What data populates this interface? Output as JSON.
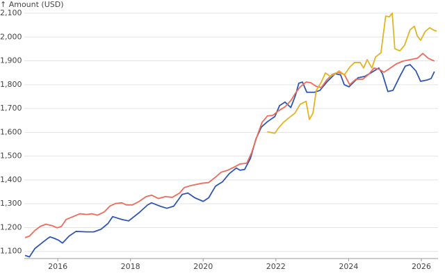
{
  "chart_data": {
    "type": "line",
    "y_label": "↑ Amount (USD)",
    "xlim": [
      2015.08,
      2026.46
    ],
    "xticks": [
      2016,
      2018,
      2020,
      2022,
      2024,
      2026
    ],
    "ylim": [
      1070,
      2100
    ],
    "yticks": [
      {
        "value": 1100,
        "label": "1,100"
      },
      {
        "value": 1200,
        "label": "1,200"
      },
      {
        "value": 1300,
        "label": "1,300"
      },
      {
        "value": 1400,
        "label": "1,400"
      },
      {
        "value": 1500,
        "label": "1,500"
      },
      {
        "value": 1600,
        "label": "1,600"
      },
      {
        "value": 1700,
        "label": "1,700"
      },
      {
        "value": 1800,
        "label": "1,800"
      },
      {
        "value": 1900,
        "label": "1,900"
      },
      {
        "value": 2000,
        "label": "2,000"
      },
      {
        "value": 2100,
        "label": "2,100"
      }
    ],
    "grid": true,
    "series": [
      {
        "color": "#2f55b4",
        "x": [
          2015.1,
          2015.22,
          2015.37,
          2015.56,
          2015.71,
          2015.79,
          2015.9,
          2016.02,
          2016.13,
          2016.31,
          2016.5,
          2016.8,
          2016.99,
          2017.19,
          2017.38,
          2017.51,
          2017.76,
          2017.95,
          2018.24,
          2018.47,
          2018.58,
          2018.81,
          2019.0,
          2019.19,
          2019.42,
          2019.58,
          2019.77,
          2020.0,
          2020.15,
          2020.34,
          2020.53,
          2020.72,
          2020.91,
          2021.01,
          2021.14,
          2021.3,
          2021.45,
          2021.6,
          2021.77,
          2021.97,
          2022.1,
          2022.25,
          2022.41,
          2022.54,
          2022.63,
          2022.73,
          2022.85,
          2023.06,
          2023.21,
          2023.4,
          2023.63,
          2023.78,
          2023.88,
          2024.01,
          2024.26,
          2024.45,
          2024.64,
          2024.83,
          2024.93,
          2025.08,
          2025.22,
          2025.41,
          2025.56,
          2025.69,
          2025.85,
          2025.98,
          2026.17,
          2026.27,
          2026.36
        ],
        "values": [
          1083,
          1077,
          1112,
          1135,
          1153,
          1161,
          1155,
          1147,
          1135,
          1164,
          1184,
          1182,
          1182,
          1193,
          1217,
          1246,
          1234,
          1228,
          1263,
          1295,
          1304,
          1290,
          1281,
          1290,
          1339,
          1345,
          1325,
          1310,
          1325,
          1374,
          1392,
          1427,
          1450,
          1441,
          1444,
          1491,
          1572,
          1622,
          1645,
          1666,
          1712,
          1727,
          1704,
          1756,
          1806,
          1811,
          1768,
          1768,
          1776,
          1811,
          1846,
          1841,
          1800,
          1791,
          1829,
          1835,
          1852,
          1870,
          1846,
          1771,
          1776,
          1835,
          1878,
          1884,
          1858,
          1814,
          1820,
          1826,
          1855
        ]
      },
      {
        "color": "#ee6b5b",
        "x": [
          2015.1,
          2015.22,
          2015.37,
          2015.52,
          2015.67,
          2015.85,
          2015.98,
          2016.1,
          2016.23,
          2016.42,
          2016.61,
          2016.8,
          2016.94,
          2017.09,
          2017.28,
          2017.43,
          2017.59,
          2017.76,
          2017.89,
          2018.05,
          2018.24,
          2018.43,
          2018.58,
          2018.77,
          2018.96,
          2019.15,
          2019.35,
          2019.48,
          2019.61,
          2019.77,
          2019.96,
          2020.15,
          2020.34,
          2020.49,
          2020.68,
          2020.88,
          2021.01,
          2021.2,
          2021.33,
          2021.49,
          2021.62,
          2021.77,
          2021.91,
          2022.06,
          2022.25,
          2022.41,
          2022.54,
          2022.67,
          2022.83,
          2022.96,
          2023.11,
          2023.25,
          2023.4,
          2023.55,
          2023.71,
          2023.88,
          2024.03,
          2024.2,
          2024.39,
          2024.55,
          2024.7,
          2024.85,
          2024.97,
          2025.12,
          2025.31,
          2025.5,
          2025.69,
          2025.89,
          2026.04,
          2026.19,
          2026.36
        ],
        "values": [
          1158,
          1164,
          1188,
          1205,
          1214,
          1208,
          1199,
          1205,
          1234,
          1246,
          1258,
          1255,
          1258,
          1252,
          1266,
          1290,
          1301,
          1304,
          1295,
          1295,
          1310,
          1330,
          1336,
          1322,
          1330,
          1327,
          1345,
          1368,
          1374,
          1380,
          1386,
          1389,
          1412,
          1432,
          1441,
          1456,
          1467,
          1470,
          1514,
          1587,
          1642,
          1669,
          1671,
          1689,
          1707,
          1733,
          1765,
          1791,
          1811,
          1808,
          1793,
          1788,
          1820,
          1843,
          1852,
          1843,
          1800,
          1823,
          1823,
          1843,
          1870,
          1864,
          1852,
          1867,
          1887,
          1899,
          1905,
          1911,
          1931,
          1911,
          1899
        ]
      },
      {
        "color": "#e2b323",
        "x": [
          2021.76,
          2021.97,
          2022.06,
          2022.21,
          2022.35,
          2022.52,
          2022.67,
          2022.83,
          2022.92,
          2023.02,
          2023.11,
          2023.25,
          2023.36,
          2023.5,
          2023.63,
          2023.74,
          2023.88,
          2024.03,
          2024.16,
          2024.32,
          2024.41,
          2024.51,
          2024.64,
          2024.74,
          2024.89,
          2025.02,
          2025.12,
          2025.2,
          2025.27,
          2025.41,
          2025.54,
          2025.69,
          2025.81,
          2025.89,
          2025.98,
          2026.11,
          2026.23,
          2026.33,
          2026.42
        ],
        "values": [
          1602,
          1596,
          1616,
          1642,
          1660,
          1680,
          1718,
          1730,
          1654,
          1680,
          1776,
          1811,
          1849,
          1835,
          1846,
          1858,
          1841,
          1873,
          1893,
          1893,
          1870,
          1905,
          1870,
          1916,
          1934,
          2088,
          2085,
          2100,
          1951,
          1942,
          1966,
          2030,
          2045,
          2004,
          1986,
          2024,
          2039,
          2030,
          2024
        ]
      }
    ]
  }
}
